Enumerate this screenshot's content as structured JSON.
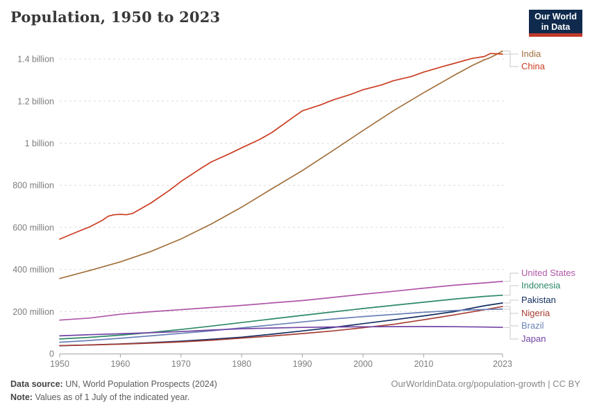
{
  "header": {
    "title": "Population, 1950 to 2023",
    "logo": {
      "line1": "Our World",
      "line2": "in Data"
    }
  },
  "chart_data": {
    "type": "line",
    "title": "Population, 1950 to 2023",
    "unit": "people (values in millions)",
    "grid": "horizontal dashed",
    "legend_position": "right end-of-line labels",
    "x_axis": {
      "ticks": [
        1950,
        1960,
        1970,
        1980,
        1990,
        2000,
        2010,
        2023
      ],
      "range": [
        1950,
        2023
      ]
    },
    "y_axis": {
      "range_millions": [
        0,
        1400
      ],
      "ticks": [
        {
          "value": 0,
          "label": "0"
        },
        {
          "value": 200,
          "label": "200 million"
        },
        {
          "value": 400,
          "label": "400 million"
        },
        {
          "value": 600,
          "label": "600 million"
        },
        {
          "value": 800,
          "label": "800 million"
        },
        {
          "value": 1000,
          "label": "1 billion"
        },
        {
          "value": 1200,
          "label": "1.2 billion"
        },
        {
          "value": 1400,
          "label": "1.4 billion"
        }
      ]
    },
    "series": [
      {
        "name": "India",
        "color": "#a2703b",
        "points": [
          [
            1950,
            357
          ],
          [
            1955,
            395
          ],
          [
            1960,
            436
          ],
          [
            1965,
            485
          ],
          [
            1970,
            545
          ],
          [
            1975,
            616
          ],
          [
            1980,
            696
          ],
          [
            1985,
            784
          ],
          [
            1990,
            870
          ],
          [
            1995,
            964
          ],
          [
            2000,
            1060
          ],
          [
            2005,
            1154
          ],
          [
            2010,
            1240
          ],
          [
            2015,
            1322
          ],
          [
            2018,
            1369
          ],
          [
            2020,
            1396
          ],
          [
            2021,
            1407
          ],
          [
            2022,
            1422
          ],
          [
            2023,
            1438
          ]
        ]
      },
      {
        "name": "China",
        "color": "#cb3d22",
        "points": [
          [
            1950,
            544
          ],
          [
            1953,
            580
          ],
          [
            1955,
            603
          ],
          [
            1957,
            633
          ],
          [
            1958,
            653
          ],
          [
            1959,
            660
          ],
          [
            1960,
            662
          ],
          [
            1961,
            660
          ],
          [
            1962,
            666
          ],
          [
            1963,
            682
          ],
          [
            1965,
            715
          ],
          [
            1968,
            774
          ],
          [
            1970,
            818
          ],
          [
            1973,
            875
          ],
          [
            1975,
            911
          ],
          [
            1978,
            950
          ],
          [
            1980,
            978
          ],
          [
            1983,
            1018
          ],
          [
            1985,
            1051
          ],
          [
            1988,
            1113
          ],
          [
            1990,
            1154
          ],
          [
            1993,
            1182
          ],
          [
            1995,
            1205
          ],
          [
            1998,
            1232
          ],
          [
            2000,
            1254
          ],
          [
            2003,
            1276
          ],
          [
            2005,
            1297
          ],
          [
            2008,
            1317
          ],
          [
            2010,
            1338
          ],
          [
            2013,
            1363
          ],
          [
            2015,
            1379
          ],
          [
            2018,
            1403
          ],
          [
            2020,
            1412
          ],
          [
            2021,
            1426
          ],
          [
            2022,
            1425
          ],
          [
            2023,
            1423
          ]
        ]
      },
      {
        "name": "United States",
        "color": "#af57a8",
        "points": [
          [
            1950,
            159
          ],
          [
            1955,
            169
          ],
          [
            1960,
            187
          ],
          [
            1965,
            199
          ],
          [
            1970,
            209
          ],
          [
            1975,
            219
          ],
          [
            1980,
            229
          ],
          [
            1985,
            241
          ],
          [
            1990,
            252
          ],
          [
            1995,
            267
          ],
          [
            2000,
            282
          ],
          [
            2005,
            296
          ],
          [
            2010,
            311
          ],
          [
            2015,
            325
          ],
          [
            2020,
            336
          ],
          [
            2023,
            343
          ]
        ]
      },
      {
        "name": "Indonesia",
        "color": "#2c8866",
        "points": [
          [
            1950,
            69.5
          ],
          [
            1955,
            77.3
          ],
          [
            1960,
            87.8
          ],
          [
            1965,
            100.3
          ],
          [
            1970,
            114.8
          ],
          [
            1975,
            130.7
          ],
          [
            1980,
            147.5
          ],
          [
            1985,
            164.6
          ],
          [
            1990,
            181.4
          ],
          [
            1995,
            198.1
          ],
          [
            2000,
            214.1
          ],
          [
            2005,
            229.3
          ],
          [
            2010,
            244.0
          ],
          [
            2015,
            259.1
          ],
          [
            2020,
            271.9
          ],
          [
            2023,
            277.5
          ]
        ]
      },
      {
        "name": "Pakistan",
        "color": "#152e62",
        "points": [
          [
            1950,
            37.5
          ],
          [
            1955,
            41.1
          ],
          [
            1960,
            45.7
          ],
          [
            1965,
            51.9
          ],
          [
            1970,
            59.1
          ],
          [
            1975,
            68.1
          ],
          [
            1980,
            78.1
          ],
          [
            1985,
            92.2
          ],
          [
            1990,
            107.6
          ],
          [
            1995,
            123.8
          ],
          [
            2000,
            142.3
          ],
          [
            2005,
            160.3
          ],
          [
            2010,
            179.4
          ],
          [
            2015,
            199.4
          ],
          [
            2020,
            227.2
          ],
          [
            2023,
            240.5
          ]
        ]
      },
      {
        "name": "Nigeria",
        "color": "#a63d33",
        "points": [
          [
            1950,
            37.9
          ],
          [
            1955,
            41.1
          ],
          [
            1960,
            44.9
          ],
          [
            1965,
            49.8
          ],
          [
            1970,
            55.6
          ],
          [
            1975,
            63.4
          ],
          [
            1980,
            73.4
          ],
          [
            1985,
            83.6
          ],
          [
            1990,
            95.2
          ],
          [
            1995,
            107.9
          ],
          [
            2000,
            122.9
          ],
          [
            2005,
            138.9
          ],
          [
            2010,
            160.9
          ],
          [
            2015,
            183.9
          ],
          [
            2020,
            208.3
          ],
          [
            2023,
            223.8
          ]
        ]
      },
      {
        "name": "Brazil",
        "color": "#6a82b8",
        "points": [
          [
            1950,
            53.9
          ],
          [
            1955,
            62.5
          ],
          [
            1960,
            72.8
          ],
          [
            1965,
            84.3
          ],
          [
            1970,
            96.1
          ],
          [
            1975,
            108.4
          ],
          [
            1980,
            122.3
          ],
          [
            1985,
            136.2
          ],
          [
            1990,
            150.7
          ],
          [
            1995,
            164.4
          ],
          [
            2000,
            175.9
          ],
          [
            2005,
            186.1
          ],
          [
            2010,
            196.4
          ],
          [
            2015,
            204.5
          ],
          [
            2020,
            209.6
          ],
          [
            2023,
            211.1
          ]
        ]
      },
      {
        "name": "Japan",
        "color": "#7143a5",
        "points": [
          [
            1950,
            84.4
          ],
          [
            1955,
            90.1
          ],
          [
            1960,
            94.1
          ],
          [
            1965,
            99.2
          ],
          [
            1970,
            104.9
          ],
          [
            1975,
            111.9
          ],
          [
            1980,
            117.8
          ],
          [
            1985,
            121.6
          ],
          [
            1990,
            124.5
          ],
          [
            1995,
            126.4
          ],
          [
            2000,
            127.5
          ],
          [
            2005,
            128.3
          ],
          [
            2010,
            128.5
          ],
          [
            2015,
            127.9
          ],
          [
            2020,
            126.2
          ],
          [
            2023,
            124.4
          ]
        ]
      }
    ]
  },
  "footer": {
    "source_label": "Data source:",
    "source_text": "UN, World Population Prospects (2024)",
    "note_label": "Note:",
    "note_text": "Values as of 1 July of the indicated year.",
    "right_text": "OurWorldinData.org/population-growth | CC BY"
  }
}
